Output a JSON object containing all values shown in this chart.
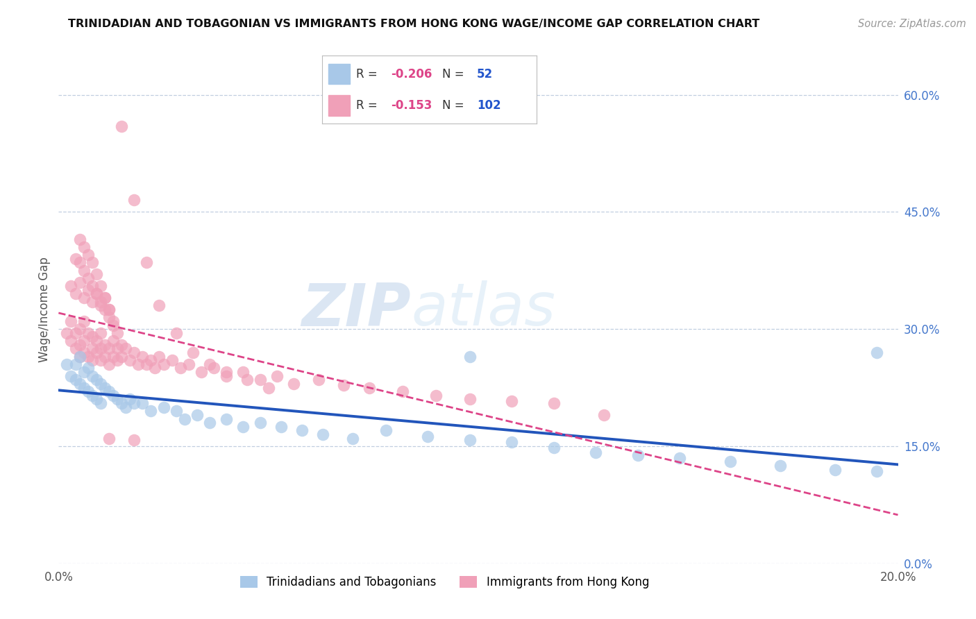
{
  "title": "TRINIDADIAN AND TOBAGONIAN VS IMMIGRANTS FROM HONG KONG WAGE/INCOME GAP CORRELATION CHART",
  "source": "Source: ZipAtlas.com",
  "ylabel": "Wage/Income Gap",
  "right_yticks": [
    0.0,
    0.15,
    0.3,
    0.45,
    0.6
  ],
  "right_ytick_labels": [
    "0.0%",
    "15.0%",
    "30.0%",
    "45.0%",
    "60.0%"
  ],
  "xlim": [
    0.0,
    0.2
  ],
  "ylim": [
    0.0,
    0.65
  ],
  "legend_R_blue": "-0.206",
  "legend_N_blue": "52",
  "legend_R_pink": "-0.153",
  "legend_N_pink": "102",
  "legend_label_blue": "Trinidadians and Tobagonians",
  "legend_label_pink": "Immigrants from Hong Kong",
  "blue_color": "#a8c8e8",
  "pink_color": "#f0a0b8",
  "trend_blue_color": "#2255bb",
  "trend_pink_color": "#dd4488",
  "watermark_zip": "ZIP",
  "watermark_atlas": "atlas",
  "blue_scatter_x": [
    0.002,
    0.003,
    0.004,
    0.004,
    0.005,
    0.005,
    0.006,
    0.006,
    0.007,
    0.007,
    0.008,
    0.008,
    0.009,
    0.009,
    0.01,
    0.01,
    0.011,
    0.012,
    0.013,
    0.014,
    0.015,
    0.016,
    0.017,
    0.018,
    0.02,
    0.022,
    0.025,
    0.028,
    0.03,
    0.033,
    0.036,
    0.04,
    0.044,
    0.048,
    0.053,
    0.058,
    0.063,
    0.07,
    0.078,
    0.088,
    0.098,
    0.108,
    0.118,
    0.128,
    0.138,
    0.148,
    0.16,
    0.172,
    0.185,
    0.195,
    0.098,
    0.195
  ],
  "blue_scatter_y": [
    0.255,
    0.24,
    0.255,
    0.235,
    0.265,
    0.23,
    0.245,
    0.225,
    0.25,
    0.22,
    0.24,
    0.215,
    0.235,
    0.21,
    0.23,
    0.205,
    0.225,
    0.22,
    0.215,
    0.21,
    0.205,
    0.2,
    0.21,
    0.205,
    0.205,
    0.195,
    0.2,
    0.195,
    0.185,
    0.19,
    0.18,
    0.185,
    0.175,
    0.18,
    0.175,
    0.17,
    0.165,
    0.16,
    0.17,
    0.162,
    0.158,
    0.155,
    0.148,
    0.142,
    0.138,
    0.135,
    0.13,
    0.125,
    0.12,
    0.118,
    0.265,
    0.27
  ],
  "pink_scatter_x": [
    0.002,
    0.003,
    0.003,
    0.004,
    0.004,
    0.005,
    0.005,
    0.005,
    0.006,
    0.006,
    0.006,
    0.007,
    0.007,
    0.008,
    0.008,
    0.008,
    0.009,
    0.009,
    0.01,
    0.01,
    0.01,
    0.011,
    0.011,
    0.012,
    0.012,
    0.013,
    0.013,
    0.014,
    0.014,
    0.015,
    0.015,
    0.016,
    0.017,
    0.018,
    0.019,
    0.02,
    0.021,
    0.022,
    0.023,
    0.024,
    0.025,
    0.027,
    0.029,
    0.031,
    0.034,
    0.037,
    0.04,
    0.044,
    0.048,
    0.052,
    0.056,
    0.062,
    0.068,
    0.074,
    0.082,
    0.09,
    0.098,
    0.108,
    0.118,
    0.13,
    0.003,
    0.004,
    0.005,
    0.006,
    0.007,
    0.008,
    0.009,
    0.01,
    0.011,
    0.012,
    0.004,
    0.005,
    0.006,
    0.007,
    0.008,
    0.009,
    0.01,
    0.011,
    0.012,
    0.013,
    0.005,
    0.006,
    0.007,
    0.008,
    0.009,
    0.01,
    0.011,
    0.012,
    0.013,
    0.014,
    0.015,
    0.018,
    0.021,
    0.024,
    0.028,
    0.032,
    0.036,
    0.04,
    0.045,
    0.05,
    0.012,
    0.018
  ],
  "pink_scatter_y": [
    0.295,
    0.285,
    0.31,
    0.275,
    0.295,
    0.28,
    0.265,
    0.3,
    0.27,
    0.285,
    0.31,
    0.265,
    0.295,
    0.275,
    0.26,
    0.29,
    0.27,
    0.285,
    0.26,
    0.275,
    0.295,
    0.265,
    0.28,
    0.255,
    0.275,
    0.265,
    0.285,
    0.26,
    0.275,
    0.265,
    0.28,
    0.275,
    0.26,
    0.27,
    0.255,
    0.265,
    0.255,
    0.26,
    0.25,
    0.265,
    0.255,
    0.26,
    0.25,
    0.255,
    0.245,
    0.25,
    0.24,
    0.245,
    0.235,
    0.24,
    0.23,
    0.235,
    0.228,
    0.225,
    0.22,
    0.215,
    0.21,
    0.208,
    0.205,
    0.19,
    0.355,
    0.345,
    0.36,
    0.34,
    0.35,
    0.335,
    0.345,
    0.33,
    0.34,
    0.325,
    0.39,
    0.385,
    0.375,
    0.365,
    0.355,
    0.345,
    0.335,
    0.325,
    0.315,
    0.305,
    0.415,
    0.405,
    0.395,
    0.385,
    0.37,
    0.355,
    0.34,
    0.325,
    0.31,
    0.295,
    0.56,
    0.465,
    0.385,
    0.33,
    0.295,
    0.27,
    0.255,
    0.245,
    0.235,
    0.225,
    0.16,
    0.158
  ]
}
